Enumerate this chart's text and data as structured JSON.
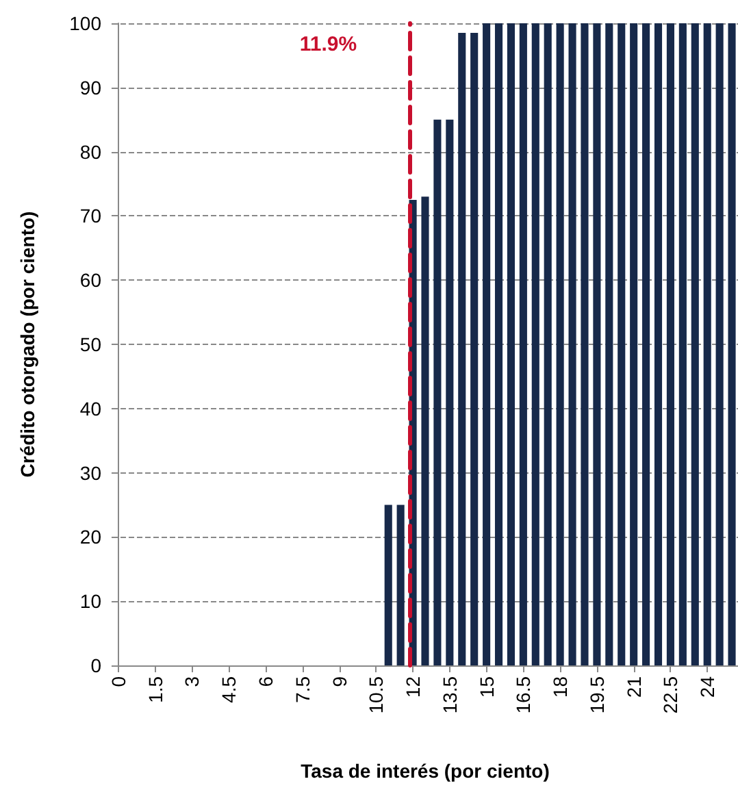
{
  "chart_data": {
    "type": "bar",
    "xlabel": "Tasa de interés (por ciento)",
    "ylabel": "Crédito otorgado (por ciento)",
    "x": [
      0,
      0.5,
      1,
      1.5,
      2,
      2.5,
      3,
      3.5,
      4,
      4.5,
      5,
      5.5,
      6,
      6.5,
      7,
      7.5,
      8,
      8.5,
      9,
      9.5,
      10,
      10.5,
      11,
      11.5,
      12,
      12.5,
      13,
      13.5,
      14,
      14.5,
      15,
      15.5,
      16,
      16.5,
      17,
      17.5,
      18,
      18.5,
      19,
      19.5,
      20,
      20.5,
      21,
      21.5,
      22,
      22.5,
      23,
      23.5,
      24,
      24.5,
      25
    ],
    "values": [
      0,
      0,
      0,
      0,
      0,
      0,
      0,
      0,
      0,
      0,
      0,
      0,
      0,
      0,
      0,
      0,
      0,
      0,
      0,
      0,
      0,
      0,
      25,
      25,
      72.5,
      73,
      85,
      85,
      98.5,
      98.5,
      100,
      100,
      100,
      100,
      100,
      100,
      100,
      100,
      100,
      100,
      100,
      100,
      100,
      100,
      100,
      100,
      100,
      100,
      100,
      100,
      100
    ],
    "color": "#17294a",
    "xlim": [
      -0.25,
      25.25
    ],
    "xticks": [
      0,
      1.5,
      3,
      4.5,
      6,
      7.5,
      9,
      10.5,
      12,
      13.5,
      15,
      16.5,
      18,
      19.5,
      21,
      22.5,
      24
    ],
    "ylim": [
      0,
      100
    ],
    "yticks": [
      0,
      10,
      20,
      30,
      40,
      50,
      60,
      70,
      80,
      90,
      100
    ],
    "grid": "y",
    "ref_lines": [
      {
        "axis": "x",
        "value": 11.9,
        "label": "11.9%",
        "color": "#c8102e",
        "line_style": "dashed"
      }
    ]
  }
}
